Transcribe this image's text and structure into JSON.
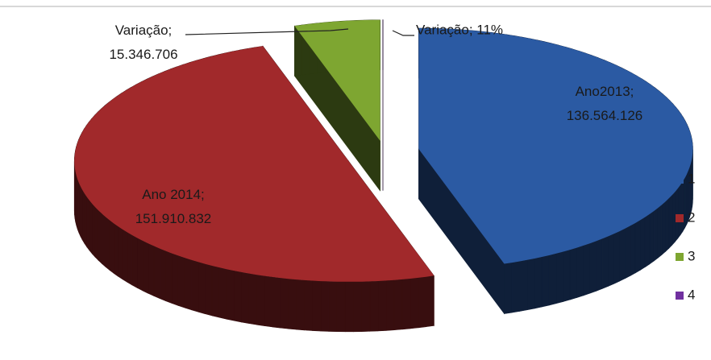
{
  "chart_data": {
    "type": "pie3d",
    "categories": [
      "1",
      "2",
      "3",
      "4"
    ],
    "values": [
      136564126,
      151910832,
      15346706,
      11
    ],
    "value_labels": [
      "Ano2013; 136.564.126",
      "Ano 2014; 151.910.832",
      "Variação; 15.346.706",
      "Variação; 11%"
    ],
    "colors": [
      "#2b5aa3",
      "#a1292b",
      "#7ea631",
      "#7030a0"
    ],
    "legend": "right"
  }
}
